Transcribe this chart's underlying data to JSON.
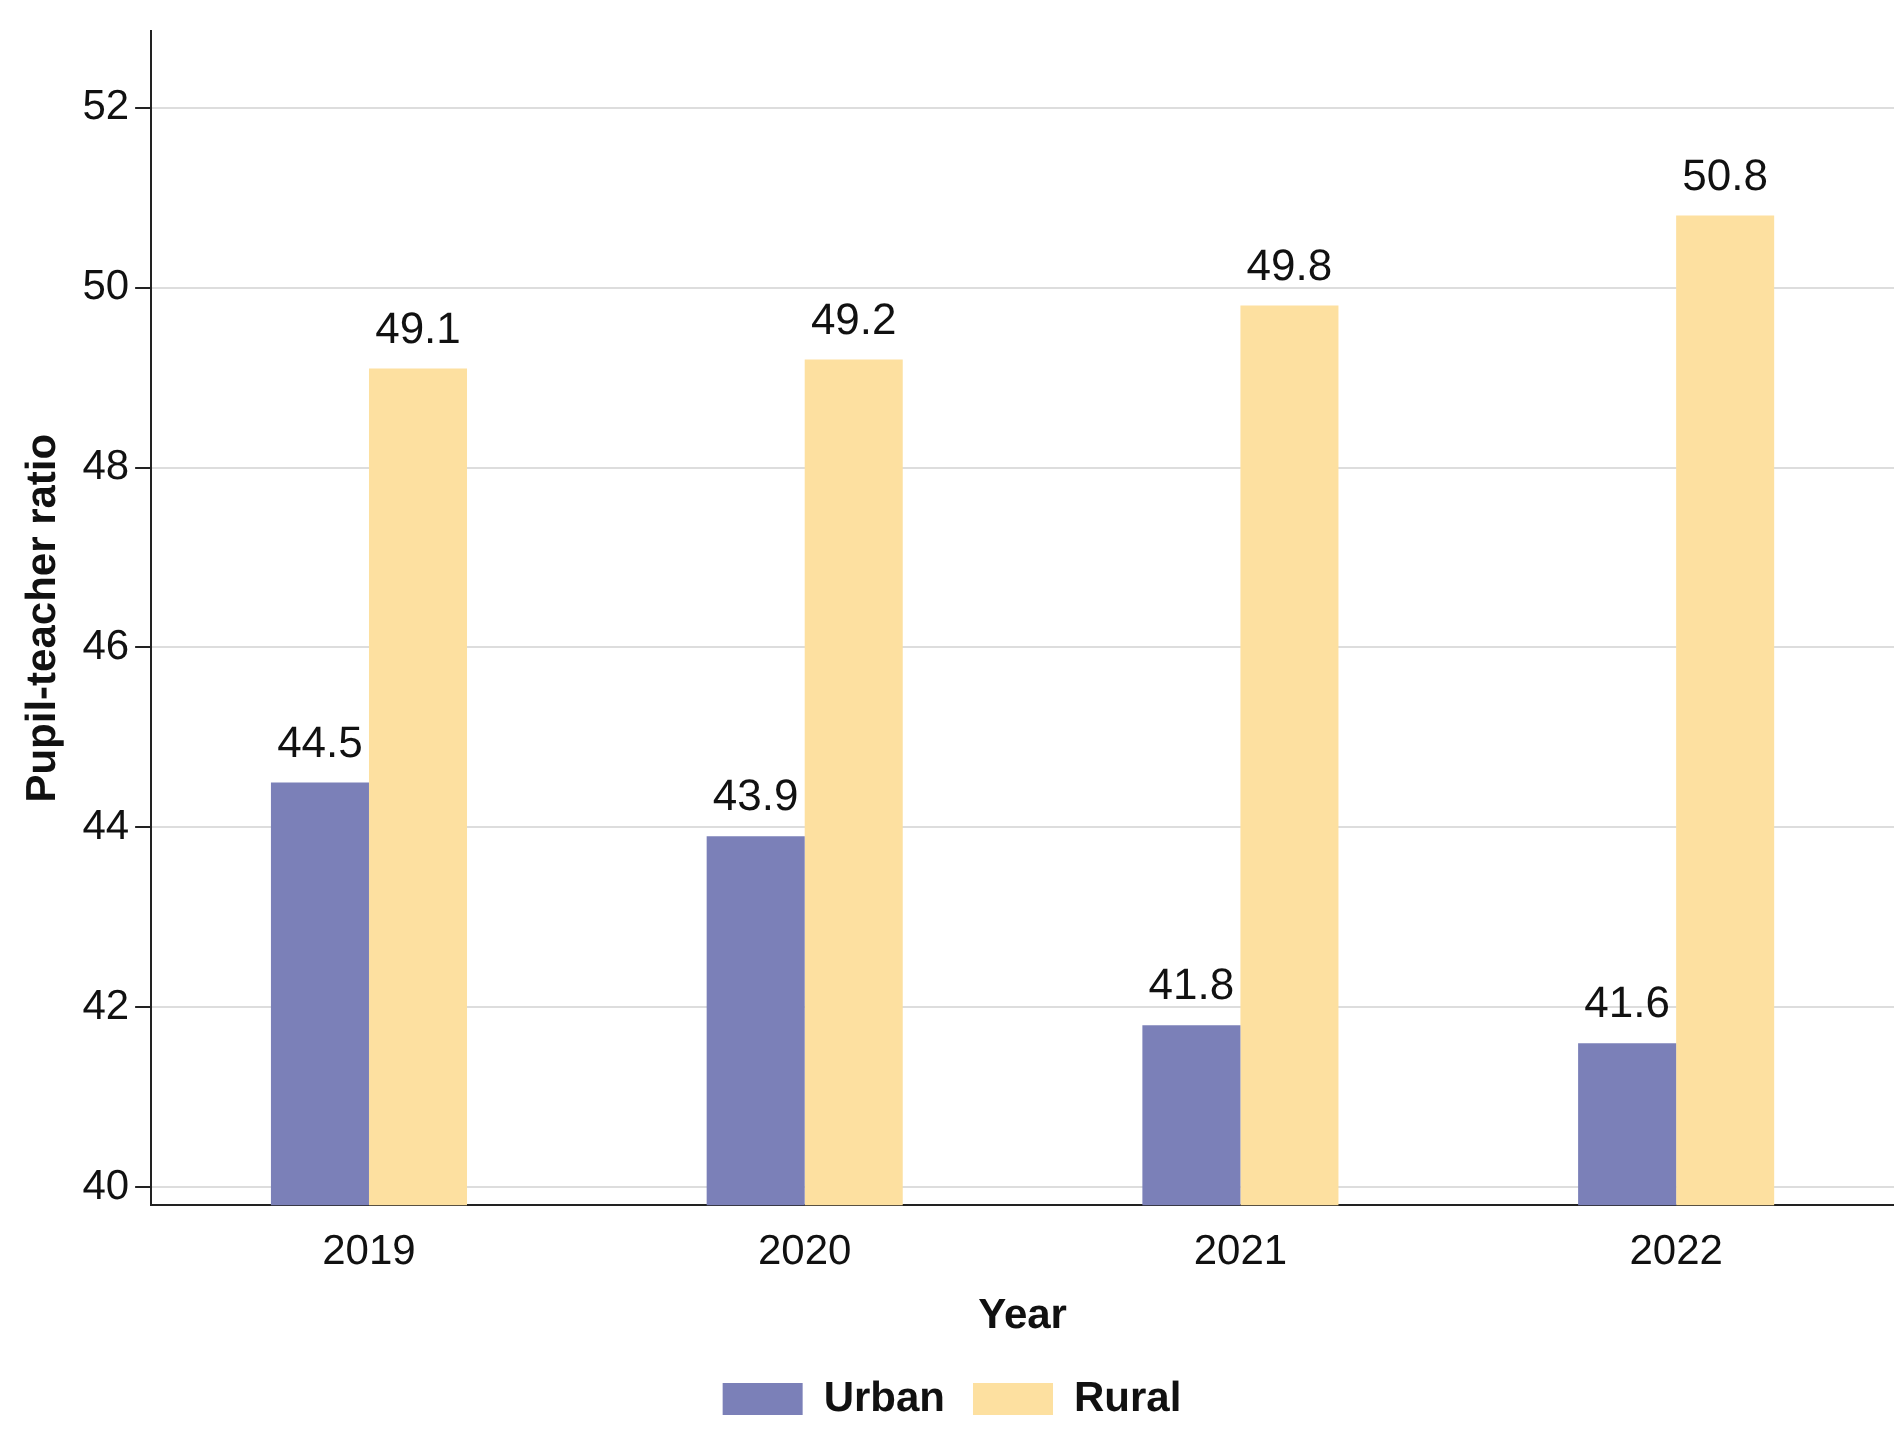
{
  "chart_data": {
    "type": "bar",
    "xlabel": "Year",
    "ylabel": "Pupil-teacher ratio",
    "categories": [
      "2019",
      "2020",
      "2021",
      "2022"
    ],
    "series": [
      {
        "name": "Urban",
        "color": "#7b80b8",
        "values": [
          44.5,
          43.9,
          41.8,
          41.6
        ]
      },
      {
        "name": "Rural",
        "color": "#fde0a0",
        "values": [
          49.1,
          49.2,
          49.8,
          50.8
        ]
      }
    ],
    "ylim": [
      39.8,
      52.85
    ],
    "yticks": [
      40,
      42,
      44,
      46,
      48,
      50,
      52
    ],
    "grid": "y",
    "legend": "bottom",
    "data_labels": true
  }
}
